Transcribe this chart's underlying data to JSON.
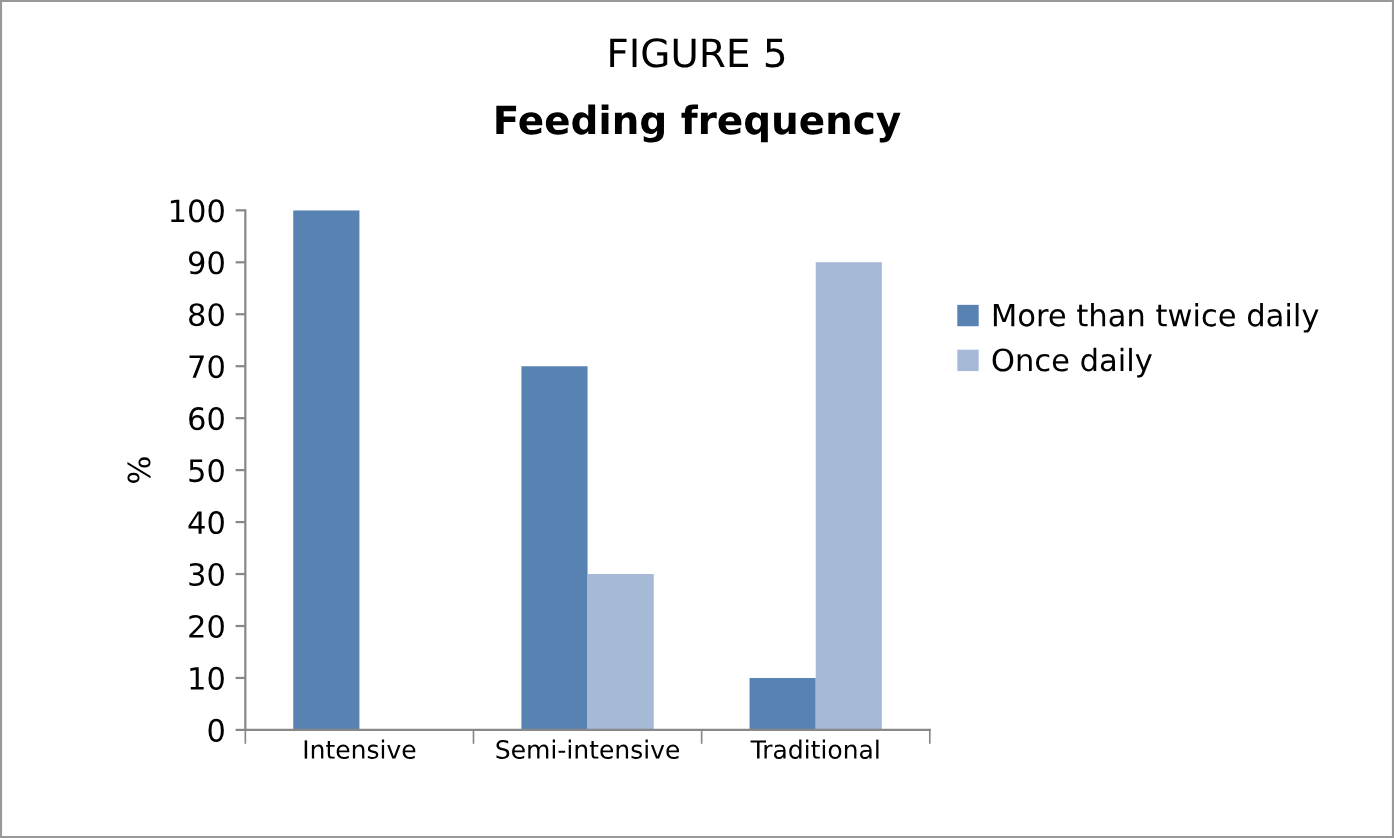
{
  "chart_data": {
    "type": "bar",
    "title": "FIGURE 5",
    "subtitle": "Feeding frequency",
    "ylabel": "%",
    "categories": [
      "Intensive",
      "Semi-intensive",
      "Traditional"
    ],
    "series": [
      {
        "name": "More than twice daily",
        "color": "#5882b2",
        "values": [
          100,
          70,
          10
        ]
      },
      {
        "name": "Once daily",
        "color": "#a6b9d7",
        "values": [
          0,
          30,
          90
        ]
      }
    ],
    "ylim": [
      0,
      100
    ],
    "yticks": [
      0,
      10,
      20,
      30,
      40,
      50,
      60,
      70,
      80,
      90,
      100
    ],
    "grid": false,
    "legend": "right"
  }
}
